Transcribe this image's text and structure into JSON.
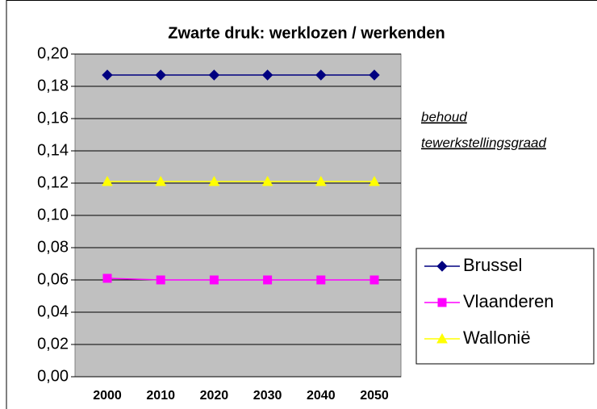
{
  "chart_data": {
    "type": "line",
    "title": "Zwarte druk:  werklozen / werkenden",
    "categories": [
      "2000",
      "2010",
      "2020",
      "2030",
      "2040",
      "2050"
    ],
    "series": [
      {
        "name": "Brussel",
        "color": "#000080",
        "marker": "diamond",
        "values": [
          0.187,
          0.187,
          0.187,
          0.187,
          0.187,
          0.187
        ]
      },
      {
        "name": "Vlaanderen",
        "color": "#ff00ff",
        "marker": "square",
        "values": [
          0.061,
          0.06,
          0.06,
          0.06,
          0.06,
          0.06
        ]
      },
      {
        "name": "Wallonië",
        "color": "#ffff00",
        "marker": "triangle",
        "values": [
          0.121,
          0.121,
          0.121,
          0.121,
          0.121,
          0.121
        ]
      }
    ],
    "ylim": [
      0,
      0.2
    ],
    "yticks": [
      {
        "value": 0,
        "label": "0,00"
      },
      {
        "value": 0.02,
        "label": "0,02"
      },
      {
        "value": 0.04,
        "label": "0,04"
      },
      {
        "value": 0.06,
        "label": "0,06"
      },
      {
        "value": 0.08,
        "label": "0,08"
      },
      {
        "value": 0.1,
        "label": "0,10"
      },
      {
        "value": 0.12,
        "label": "0,12"
      },
      {
        "value": 0.14,
        "label": "0,14"
      },
      {
        "value": 0.16,
        "label": "0,16"
      },
      {
        "value": 0.18,
        "label": "0,18"
      },
      {
        "value": 0.2,
        "label": "0,20"
      }
    ],
    "grid": true,
    "annotations": [
      "behoud",
      "tewerkstellingsgraad"
    ],
    "legend": "right"
  }
}
